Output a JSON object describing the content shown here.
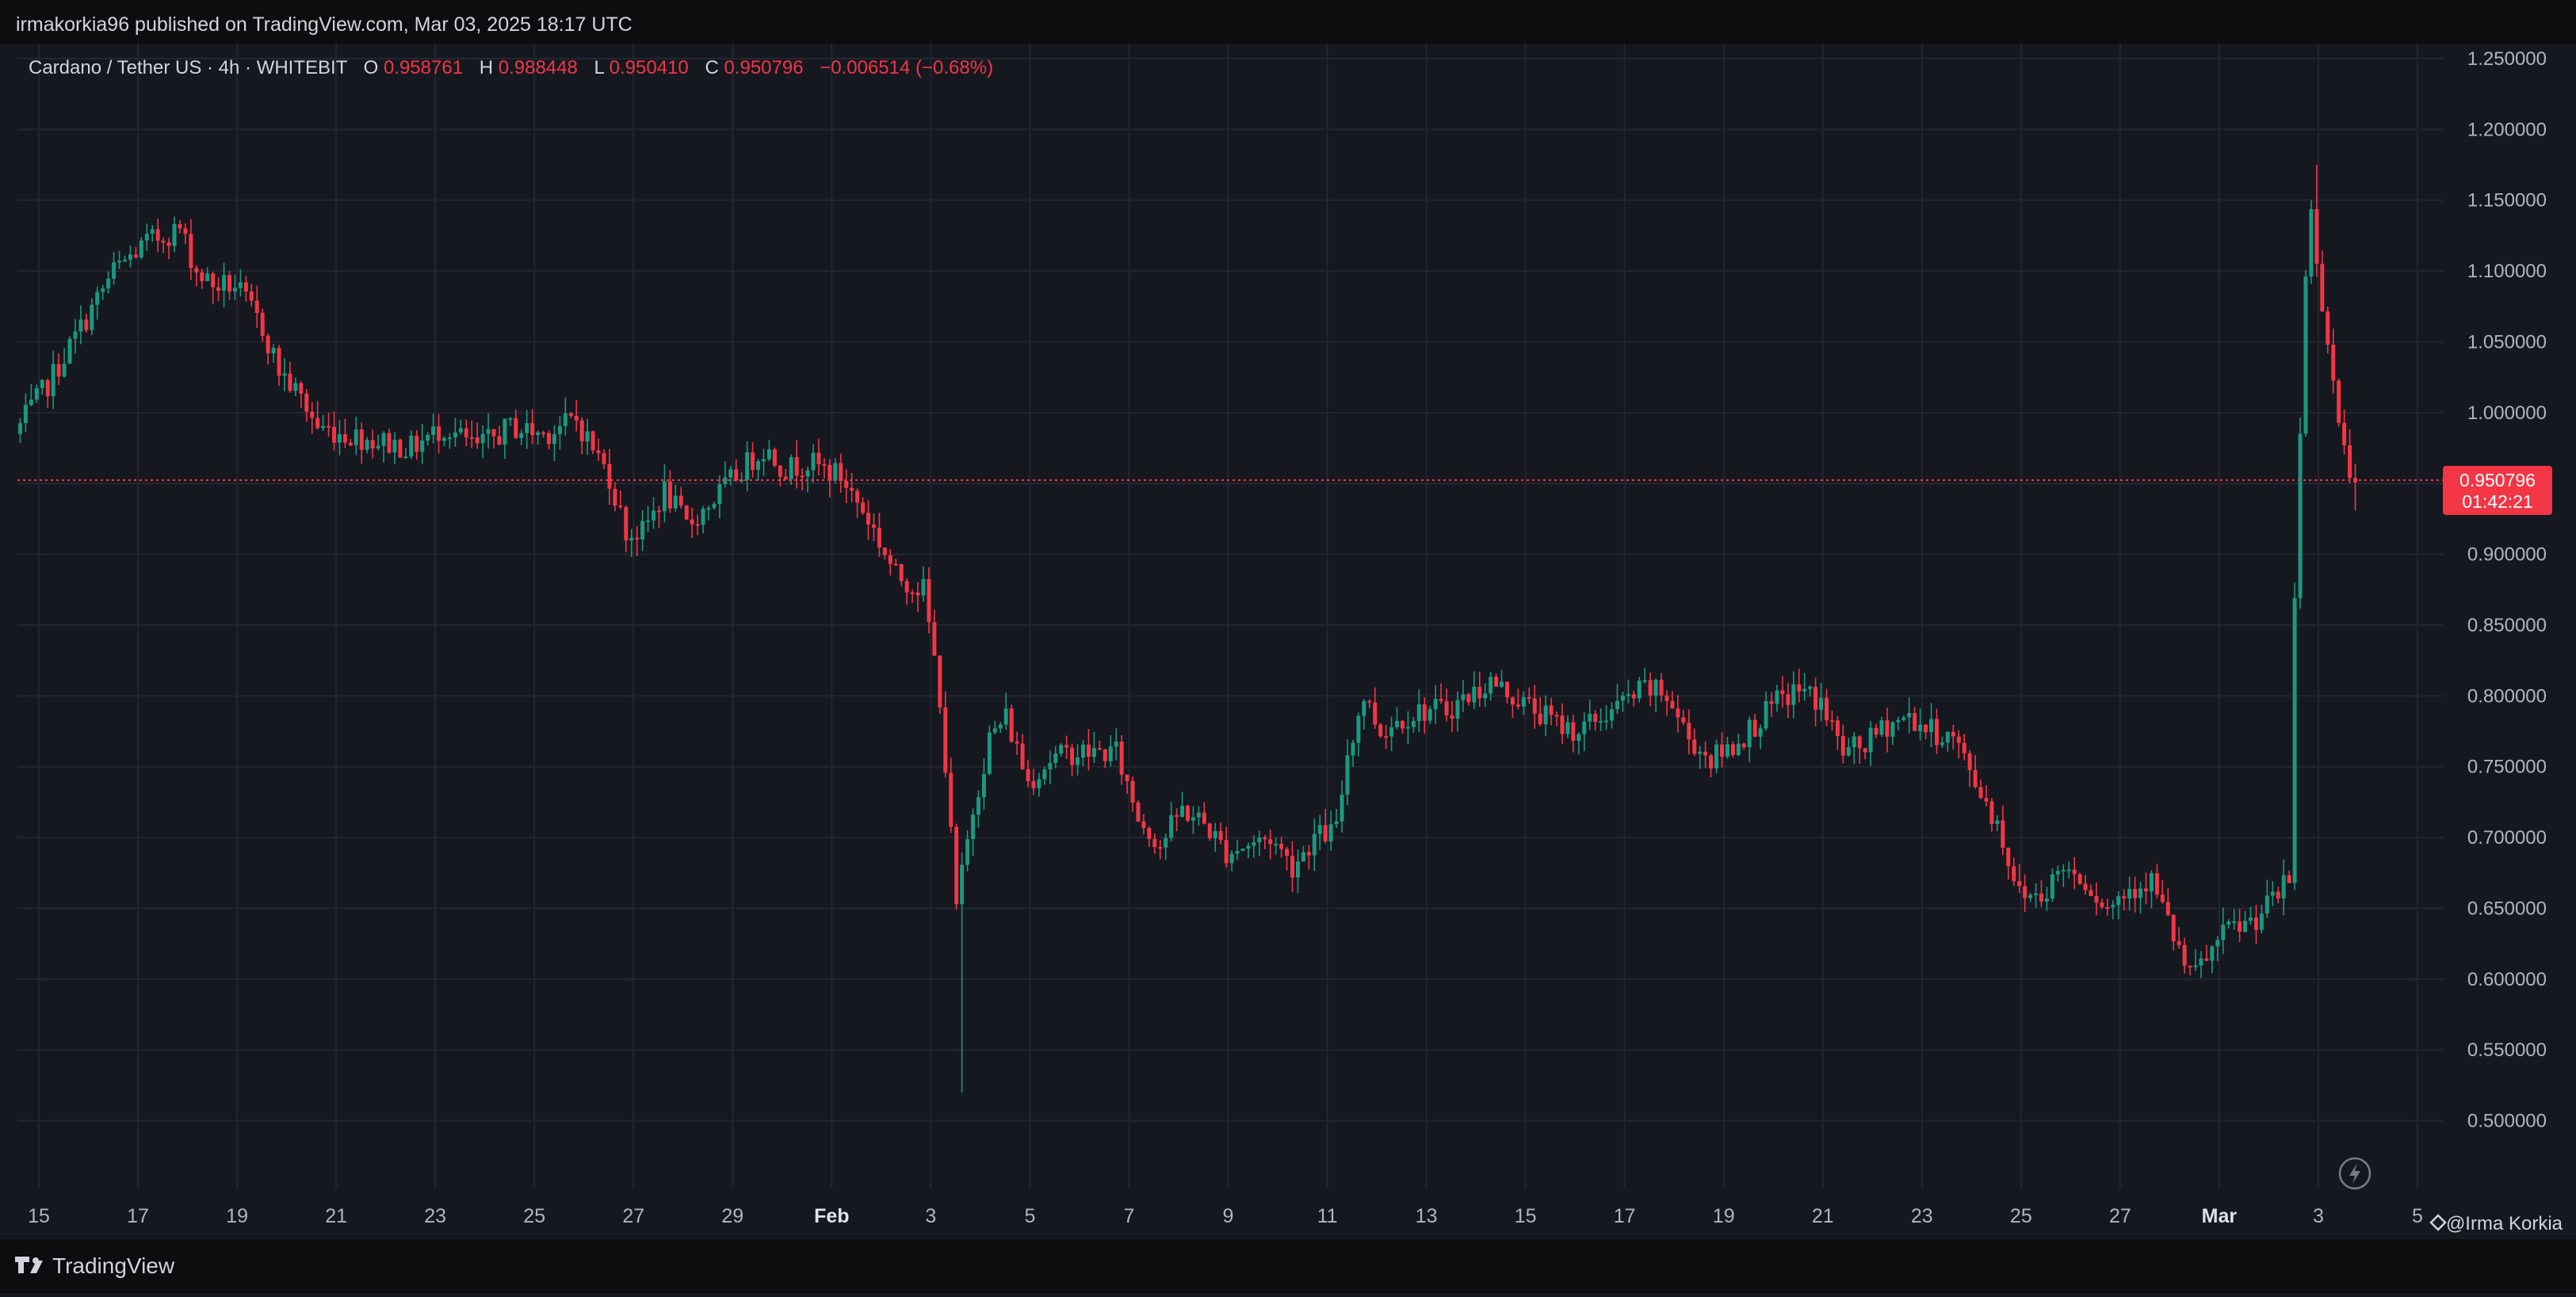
{
  "header": {
    "published": "irmakorkia96 published on TradingView.com, Mar 03, 2025 18:17 UTC"
  },
  "legend": {
    "symbol": "Cardano / Tether US · 4h · WHITEBIT",
    "o_label": "O",
    "o_value": "0.958761",
    "h_label": "H",
    "h_value": "0.988448",
    "l_label": "L",
    "l_value": "0.950410",
    "c_label": "C",
    "c_value": "0.950796",
    "change": "−0.006514 (−0.68%)"
  },
  "price_tag": {
    "price": "0.950796",
    "countdown": "01:42:21"
  },
  "footer": {
    "brand": "TradingView",
    "author": "@Irma Korkia"
  },
  "colors": {
    "background": "#161820",
    "grid": "#232632",
    "up": "#1a9980",
    "down": "#f23645",
    "text": "#d1d4dc",
    "axis_text": "#b2b5be",
    "bar": "#0d0d0f"
  },
  "icons": {
    "lightning": "lightning-icon",
    "brand": "tradingview-logo-icon",
    "author": "diamond-icon"
  },
  "chart_data": {
    "type": "candlestick",
    "title": "Cardano / Tether US · 4h · WHITEBIT",
    "ylim": [
      0.455,
      1.255
    ],
    "y_ticks": [
      "1.250000",
      "1.200000",
      "1.150000",
      "1.100000",
      "1.050000",
      "1.000000",
      "0.950000",
      "0.900000",
      "0.850000",
      "0.800000",
      "0.750000",
      "0.700000",
      "0.650000",
      "0.600000",
      "0.550000",
      "0.500000"
    ],
    "x_ticks": [
      "15",
      "17",
      "19",
      "21",
      "23",
      "25",
      "27",
      "29",
      "Feb",
      "3",
      "5",
      "7",
      "9",
      "11",
      "13",
      "15",
      "17",
      "19",
      "21",
      "23",
      "25",
      "27",
      "Mar",
      "3",
      "5"
    ],
    "x_bold": [
      "Feb",
      "Mar"
    ],
    "last_price": 0.950796,
    "grid": true,
    "anchors": [
      [
        0,
        0.985
      ],
      [
        6,
        1.02
      ],
      [
        12,
        1.06
      ],
      [
        18,
        1.1
      ],
      [
        24,
        1.12
      ],
      [
        30,
        1.13
      ],
      [
        33,
        1.1
      ],
      [
        36,
        1.09
      ],
      [
        40,
        1.09
      ],
      [
        45,
        1.06
      ],
      [
        48,
        1.03
      ],
      [
        52,
        1.01
      ],
      [
        55,
        0.99
      ],
      [
        60,
        0.985
      ],
      [
        66,
        0.98
      ],
      [
        72,
        0.975
      ],
      [
        78,
        0.99
      ],
      [
        84,
        0.975
      ],
      [
        90,
        0.99
      ],
      [
        96,
        0.985
      ],
      [
        102,
        0.995
      ],
      [
        108,
        0.955
      ],
      [
        111,
        0.915
      ],
      [
        114,
        0.915
      ],
      [
        118,
        0.945
      ],
      [
        122,
        0.92
      ],
      [
        126,
        0.935
      ],
      [
        132,
        0.96
      ],
      [
        136,
        0.975
      ],
      [
        140,
        0.96
      ],
      [
        144,
        0.965
      ],
      [
        150,
        0.955
      ],
      [
        155,
        0.925
      ],
      [
        160,
        0.885
      ],
      [
        165,
        0.875
      ],
      [
        168,
        0.8
      ],
      [
        171,
        0.65
      ],
      [
        174,
        0.72
      ],
      [
        177,
        0.77
      ],
      [
        180,
        0.785
      ],
      [
        184,
        0.74
      ],
      [
        188,
        0.755
      ],
      [
        192,
        0.76
      ],
      [
        196,
        0.76
      ],
      [
        200,
        0.76
      ],
      [
        204,
        0.715
      ],
      [
        208,
        0.695
      ],
      [
        212,
        0.72
      ],
      [
        216,
        0.71
      ],
      [
        220,
        0.69
      ],
      [
        224,
        0.695
      ],
      [
        228,
        0.7
      ],
      [
        232,
        0.68
      ],
      [
        236,
        0.7
      ],
      [
        240,
        0.705
      ],
      [
        242,
        0.76
      ],
      [
        245,
        0.8
      ],
      [
        248,
        0.775
      ],
      [
        252,
        0.785
      ],
      [
        256,
        0.79
      ],
      [
        260,
        0.79
      ],
      [
        264,
        0.8
      ],
      [
        268,
        0.81
      ],
      [
        272,
        0.8
      ],
      [
        276,
        0.79
      ],
      [
        280,
        0.78
      ],
      [
        284,
        0.775
      ],
      [
        288,
        0.785
      ],
      [
        292,
        0.795
      ],
      [
        296,
        0.805
      ],
      [
        300,
        0.8
      ],
      [
        304,
        0.77
      ],
      [
        308,
        0.755
      ],
      [
        312,
        0.765
      ],
      [
        316,
        0.78
      ],
      [
        320,
        0.795
      ],
      [
        324,
        0.805
      ],
      [
        328,
        0.795
      ],
      [
        332,
        0.76
      ],
      [
        336,
        0.765
      ],
      [
        340,
        0.78
      ],
      [
        344,
        0.785
      ],
      [
        348,
        0.775
      ],
      [
        352,
        0.77
      ],
      [
        356,
        0.74
      ],
      [
        360,
        0.71
      ],
      [
        364,
        0.66
      ],
      [
        368,
        0.66
      ],
      [
        372,
        0.68
      ],
      [
        376,
        0.67
      ],
      [
        380,
        0.65
      ],
      [
        384,
        0.665
      ],
      [
        388,
        0.67
      ],
      [
        392,
        0.63
      ],
      [
        395,
        0.6
      ],
      [
        398,
        0.615
      ],
      [
        402,
        0.635
      ],
      [
        406,
        0.64
      ],
      [
        410,
        0.655
      ],
      [
        412,
        0.665
      ],
      [
        413,
        0.67
      ],
      [
        414,
        0.87
      ],
      [
        416,
        1.1
      ],
      [
        417,
        1.14
      ],
      [
        419,
        1.08
      ],
      [
        421,
        1.02
      ],
      [
        423,
        0.97
      ],
      [
        425,
        0.955
      ]
    ],
    "x_range_days": [
      "2025-01-14",
      "2025-03-05"
    ],
    "candle_count": 425,
    "low_extreme": 0.52,
    "high_extreme": 1.175
  }
}
